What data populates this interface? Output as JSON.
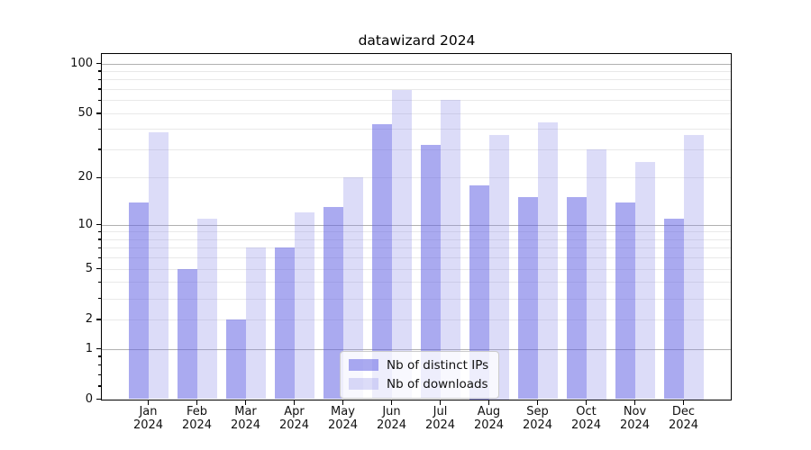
{
  "chart_data": {
    "type": "bar",
    "title": "datawizard 2024",
    "categories": [
      "Jan 2024",
      "Feb 2024",
      "Mar 2024",
      "Apr 2024",
      "May 2024",
      "Jun 2024",
      "Jul 2024",
      "Aug 2024",
      "Sep 2024",
      "Oct 2024",
      "Nov 2024",
      "Dec 2024"
    ],
    "series": [
      {
        "name": "Nb of distinct IPs",
        "color": "#aaaaf0",
        "fill": "rgba(100,100,228,0.55)",
        "values": [
          14,
          5,
          2,
          7,
          13,
          43,
          32,
          18,
          15,
          15,
          14,
          11
        ]
      },
      {
        "name": "Nb of downloads",
        "color": "#dcdcf8",
        "fill": "rgba(138,138,232,0.30)",
        "values": [
          38,
          11,
          7,
          12,
          20,
          69,
          60,
          37,
          44,
          30,
          25,
          37
        ]
      }
    ],
    "yscale": "log1p",
    "ylim": [
      0,
      115
    ],
    "y_ticks": [
      0,
      1,
      2,
      5,
      10,
      20,
      50,
      100
    ],
    "y_decade_ticks": [
      1,
      10,
      100
    ],
    "y_minor_ticks": [
      0.2,
      0.4,
      0.6,
      0.8,
      3,
      4,
      6,
      7,
      8,
      9,
      30,
      40,
      60,
      70,
      80,
      90
    ],
    "grid": true,
    "legend_position": "lower center",
    "xlabel": "",
    "ylabel": ""
  },
  "colors": {
    "grid_major": "#b0b0b0",
    "grid_minor": "#e9e9e9",
    "spine": "#000000",
    "text": "#111111",
    "legend_border": "#cccccc",
    "legend_bg": "rgba(255,255,255,0.8)"
  }
}
